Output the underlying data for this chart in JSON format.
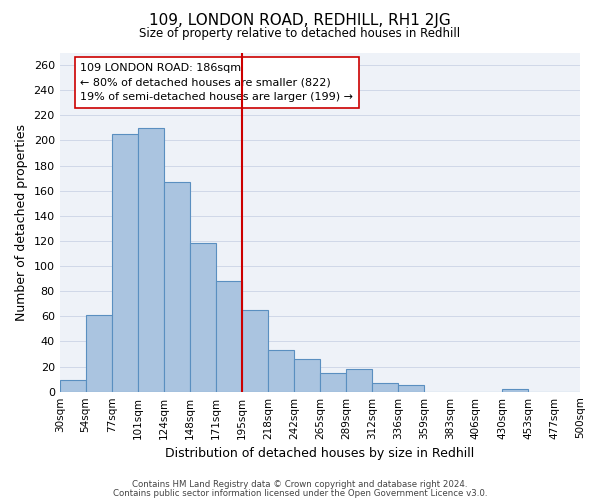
{
  "title": "109, LONDON ROAD, REDHILL, RH1 2JG",
  "subtitle": "Size of property relative to detached houses in Redhill",
  "xlabel": "Distribution of detached houses by size in Redhill",
  "ylabel": "Number of detached properties",
  "footer_lines": [
    "Contains HM Land Registry data © Crown copyright and database right 2024.",
    "Contains public sector information licensed under the Open Government Licence v3.0."
  ],
  "bin_labels": [
    "30sqm",
    "54sqm",
    "77sqm",
    "101sqm",
    "124sqm",
    "148sqm",
    "171sqm",
    "195sqm",
    "218sqm",
    "242sqm",
    "265sqm",
    "289sqm",
    "312sqm",
    "336sqm",
    "359sqm",
    "383sqm",
    "406sqm",
    "430sqm",
    "453sqm",
    "477sqm",
    "500sqm"
  ],
  "bar_values": [
    9,
    61,
    205,
    210,
    167,
    118,
    88,
    65,
    33,
    26,
    15,
    18,
    7,
    5,
    0,
    0,
    0,
    2,
    0,
    0
  ],
  "bar_color": "#aac4e0",
  "bar_edge_color": "#5a8fc0",
  "vline_x_index": 7,
  "vline_color": "#cc0000",
  "annotation_title": "109 LONDON ROAD: 186sqm",
  "annotation_line1": "← 80% of detached houses are smaller (822)",
  "annotation_line2": "19% of semi-detached houses are larger (199) →",
  "annotation_box_color": "#ffffff",
  "annotation_box_edge": "#cc0000",
  "ylim": [
    0,
    270
  ],
  "yticks": [
    0,
    20,
    40,
    60,
    80,
    100,
    120,
    140,
    160,
    180,
    200,
    220,
    240,
    260
  ]
}
